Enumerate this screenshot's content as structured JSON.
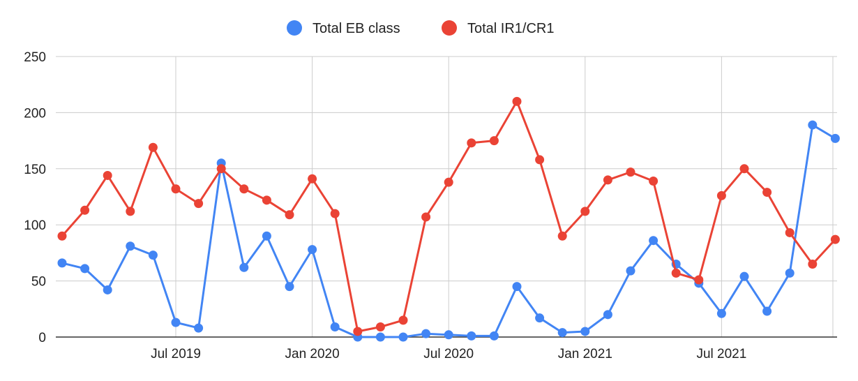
{
  "chart_data": {
    "type": "line",
    "grid": true,
    "legend_position": "top",
    "ylim": [
      0,
      250
    ],
    "y_ticks": [
      0,
      50,
      100,
      150,
      200,
      250
    ],
    "x_start": "2019-02",
    "x_ticks": [
      {
        "label": "Jul 2019",
        "index": 5
      },
      {
        "label": "Jan 2020",
        "index": 11
      },
      {
        "label": "Jul 2020",
        "index": 17
      },
      {
        "label": "Jan 2021",
        "index": 23
      },
      {
        "label": "Jul 2021",
        "index": 29
      }
    ],
    "series": [
      {
        "name": "Total EB class",
        "color": "#4285f4",
        "values": [
          66,
          61,
          42,
          81,
          73,
          13,
          8,
          155,
          62,
          90,
          45,
          78,
          9,
          0,
          0,
          0,
          3,
          2,
          1,
          1,
          45,
          17,
          4,
          5,
          20,
          59,
          86,
          65,
          48,
          21,
          54,
          23,
          57,
          189,
          177
        ]
      },
      {
        "name": "Total IR1/CR1",
        "color": "#ea4335",
        "values": [
          90,
          113,
          144,
          112,
          169,
          132,
          119,
          150,
          132,
          122,
          109,
          141,
          110,
          5,
          9,
          15,
          107,
          138,
          173,
          175,
          210,
          158,
          90,
          112,
          140,
          147,
          139,
          57,
          51,
          126,
          150,
          129,
          93,
          65,
          87
        ]
      }
    ]
  }
}
